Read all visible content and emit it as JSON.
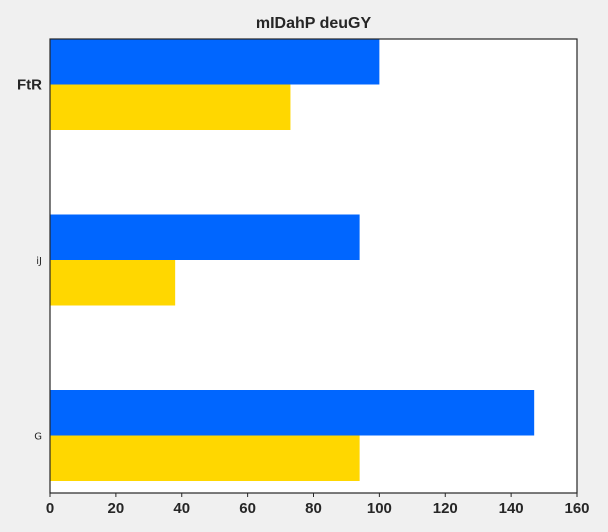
{
  "chart_data": {
    "type": "bar",
    "orientation": "horizontal",
    "title": "mIDahP deuGY",
    "xlabel": "",
    "ylabel": "",
    "categories": [
      "FtR",
      "iJ",
      "G"
    ],
    "series": [
      {
        "values": [
          100,
          94,
          147
        ],
        "color": "#0066ff"
      },
      {
        "values": [
          73,
          38,
          94
        ],
        "color": "#ffd700"
      }
    ],
    "xlim": [
      0,
      160
    ],
    "x_ticks": [
      0,
      20,
      40,
      60,
      80,
      100,
      120,
      140,
      160
    ],
    "x_tick_labels": [
      "0",
      "20",
      "40",
      "60",
      "80",
      "100",
      "120",
      "140",
      "160"
    ],
    "grid": false,
    "legend": "none"
  },
  "colors": {
    "background": "#f0f0f0",
    "plot_area": "#ffffff",
    "frame": "#262626",
    "text": "#262626"
  }
}
